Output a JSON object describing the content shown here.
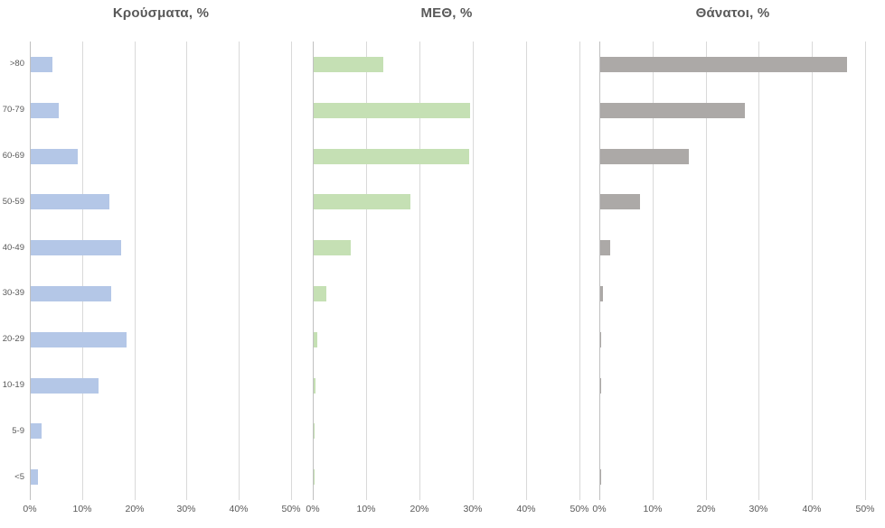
{
  "style": {
    "title_color": "#595959",
    "axis_text_color": "#595959",
    "gridline_color": "#d9d9d9",
    "zero_line_color": "#c0c0c0",
    "background": "#ffffff"
  },
  "chart_data": [
    {
      "type": "bar",
      "orientation": "horizontal",
      "title": "Κρούσματα, %",
      "categories": [
        ">80",
        "70-79",
        "60-69",
        "50-59",
        "40-49",
        "30-39",
        "20-29",
        "10-19",
        "5-9",
        "<5"
      ],
      "values": [
        4.1,
        5.4,
        9.0,
        15.0,
        17.3,
        15.4,
        18.4,
        12.9,
        2.0,
        1.4
      ],
      "x_ticks": [
        "0%",
        "10%",
        "20%",
        "30%",
        "40%",
        "50%"
      ],
      "xlim": [
        0,
        50
      ],
      "bar_color": "#b4c7e7",
      "grid": true,
      "show_category_labels": true
    },
    {
      "type": "bar",
      "orientation": "horizontal",
      "title": "ΜΕΘ, %",
      "categories": [
        ">80",
        "70-79",
        "60-69",
        "50-59",
        "40-49",
        "30-39",
        "20-29",
        "10-19",
        "5-9",
        "<5"
      ],
      "values": [
        13.0,
        29.4,
        29.2,
        18.2,
        6.9,
        2.3,
        0.7,
        0.3,
        0.1,
        0.1
      ],
      "x_ticks": [
        "0%",
        "10%",
        "20%",
        "30%",
        "40%",
        "50%"
      ],
      "xlim": [
        0,
        50
      ],
      "bar_color": "#c5e0b4",
      "grid": true,
      "show_category_labels": false
    },
    {
      "type": "bar",
      "orientation": "horizontal",
      "title": "Θάνατοι, %",
      "categories": [
        ">80",
        "70-79",
        "60-69",
        "50-59",
        "40-49",
        "30-39",
        "20-29",
        "10-19",
        "5-9",
        "<5"
      ],
      "values": [
        46.5,
        27.2,
        16.6,
        7.4,
        1.9,
        0.5,
        0.2,
        0.2,
        0,
        0.2
      ],
      "x_ticks": [
        "0%",
        "10%",
        "20%",
        "30%",
        "40%",
        "50%"
      ],
      "xlim": [
        0,
        50
      ],
      "bar_color": "#aca9a7",
      "grid": true,
      "show_category_labels": false
    }
  ]
}
